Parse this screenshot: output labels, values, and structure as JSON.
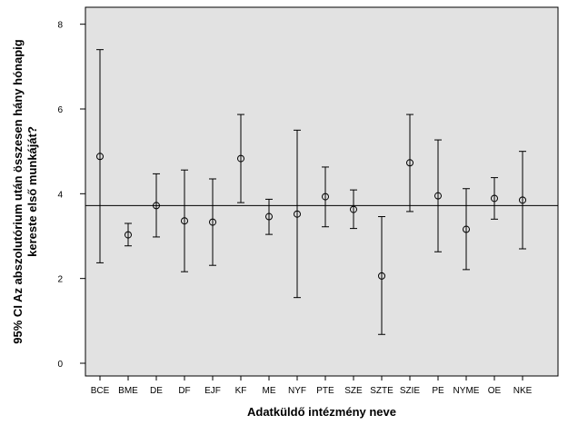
{
  "chart_data": {
    "type": "errorbar",
    "xlabel": "Adatküldő intézmény neve",
    "ylabel_lines": [
      "95% CI Az abszolutórium után összesen hány hónapig",
      "kereste első munkáját?"
    ],
    "ylim": [
      -0.3,
      8.4
    ],
    "yticks": [
      0,
      2,
      4,
      6,
      8
    ],
    "reference_line": 3.72,
    "grid": false,
    "colors": {
      "plot_background": "#e2e2e2",
      "marks": "#000000"
    },
    "categories": [
      "BCE",
      "BME",
      "DE",
      "DF",
      "EJF",
      "KF",
      "ME",
      "NYF",
      "PTE",
      "SZE",
      "SZTE",
      "SZIE",
      "PE",
      "NYME",
      "OE",
      "NKE"
    ],
    "means": [
      4.88,
      3.03,
      3.72,
      3.36,
      3.33,
      4.83,
      3.46,
      3.52,
      3.93,
      3.63,
      2.06,
      4.73,
      3.95,
      3.16,
      3.89,
      3.85
    ],
    "lower": [
      2.37,
      2.77,
      2.98,
      2.16,
      2.31,
      3.79,
      3.04,
      1.55,
      3.22,
      3.18,
      0.68,
      3.58,
      2.63,
      2.21,
      3.4,
      2.7
    ],
    "upper": [
      7.4,
      3.3,
      4.47,
      4.56,
      4.35,
      5.87,
      3.87,
      5.5,
      4.63,
      4.09,
      3.46,
      5.87,
      5.27,
      4.12,
      4.38,
      5.0
    ]
  }
}
